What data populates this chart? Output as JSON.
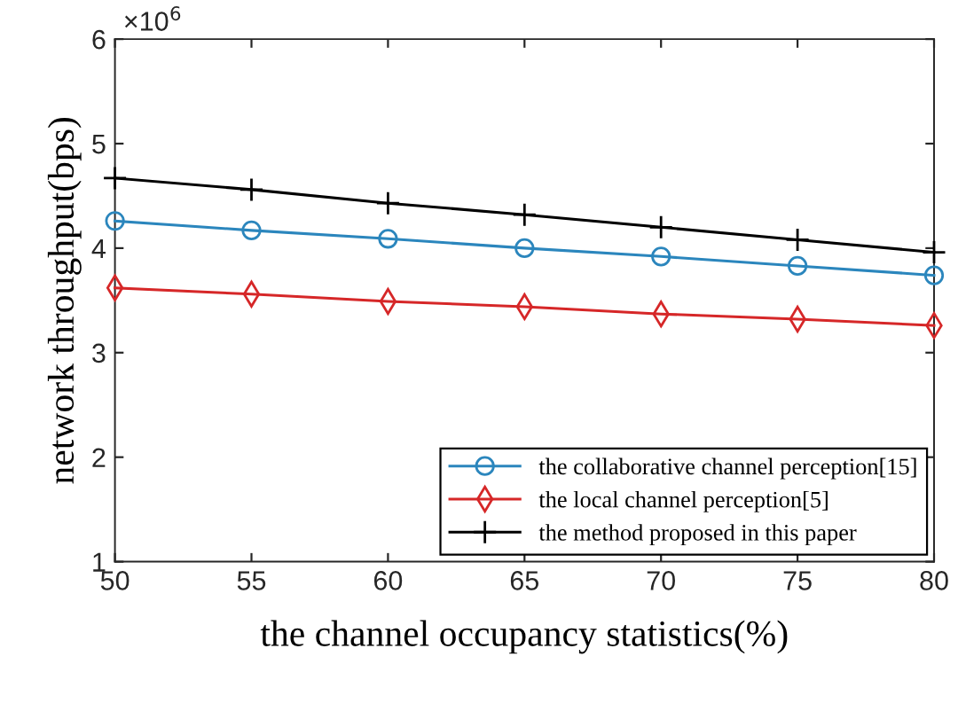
{
  "chart_data": {
    "type": "line",
    "xlabel": "the channel occupancy statistics(%)",
    "ylabel": "network throughput(bps)",
    "x": [
      50,
      55,
      60,
      65,
      70,
      75,
      80
    ],
    "series": [
      {
        "name": "the collaborative channel perception[15]",
        "color": "#2b86bd",
        "marker": "circle",
        "values": [
          4.26,
          4.17,
          4.09,
          4.0,
          3.92,
          3.83,
          3.74
        ]
      },
      {
        "name": "the local channel perception[5]",
        "color": "#d62728",
        "marker": "diamond",
        "values": [
          3.62,
          3.56,
          3.49,
          3.44,
          3.37,
          3.32,
          3.26
        ]
      },
      {
        "name": "the method proposed in this paper",
        "color": "#000000",
        "marker": "cross",
        "values": [
          4.67,
          4.56,
          4.43,
          4.32,
          4.2,
          4.08,
          3.96
        ]
      }
    ],
    "xlim": [
      50,
      80
    ],
    "xticks": [
      50,
      55,
      60,
      65,
      70,
      75,
      80
    ],
    "ylim": [
      1,
      6
    ],
    "yticks": [
      1,
      2,
      3,
      4,
      5,
      6
    ],
    "annotations": [
      "×10$^{6}$"
    ],
    "grid": false,
    "legend": "bottom right",
    "line_style": "solid"
  }
}
